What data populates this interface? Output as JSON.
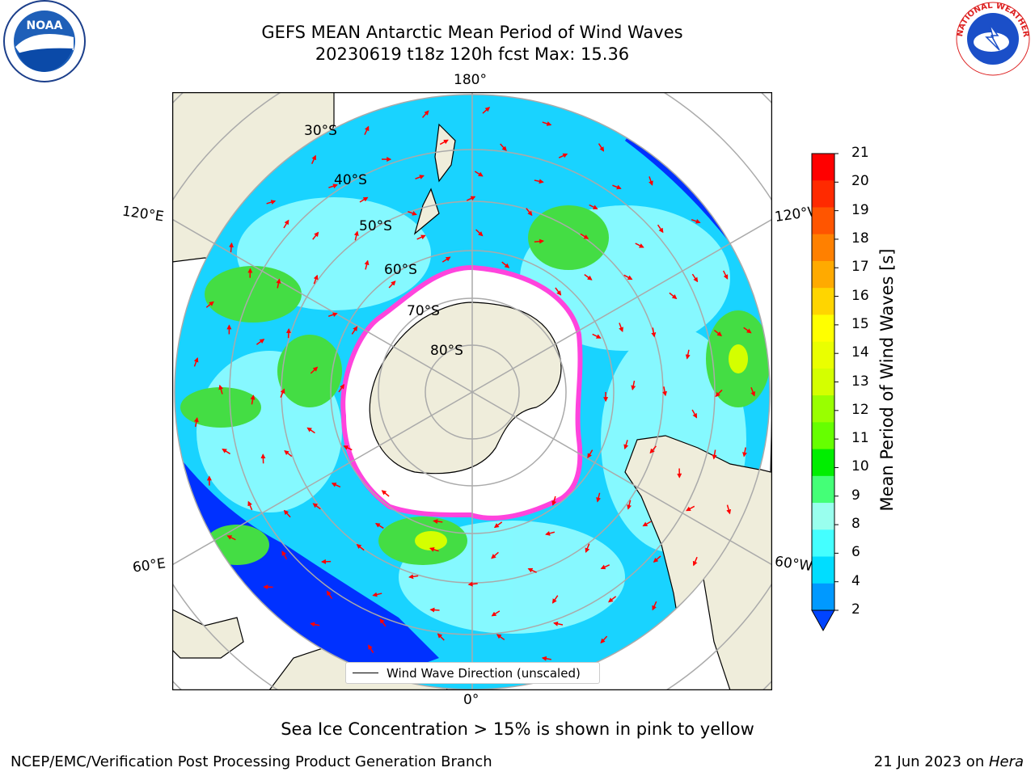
{
  "header": {
    "title_line1": "GEFS MEAN Antarctic Mean Period of Wind Waves",
    "title_line2": "20230619 t18z 120h fcst   Max: 15.36"
  },
  "map": {
    "longitude_labels": {
      "top": "180°",
      "bottom": "0°",
      "left_upper": "120°E",
      "left_lower": "60°E",
      "right_upper": "120°W",
      "right_lower": "60°W"
    },
    "latitude_labels": [
      "30°S",
      "40°S",
      "50°S",
      "60°S",
      "70°S",
      "80°S"
    ],
    "legend_label": "Wind Wave Direction (unscaled)",
    "colors": {
      "land": "#efeddb",
      "ocean_low": "#0031ff",
      "ocean_mid": "#19d3ff",
      "ocean_light": "#99ffff",
      "green": "#44dd44",
      "sea_ice": "#ff44dd",
      "arrow": "#ff0000"
    }
  },
  "colorbar": {
    "label": "Mean Period of Wind Waves [s]",
    "ticks": [
      "21",
      "20",
      "19",
      "18",
      "17",
      "16",
      "15",
      "14",
      "13",
      "12",
      "11",
      "10",
      "9",
      "8",
      "6",
      "4",
      "2"
    ],
    "colors": [
      "#ff0000",
      "#ff2a00",
      "#ff5500",
      "#ff8000",
      "#ffaa00",
      "#ffd500",
      "#ffff00",
      "#eaff00",
      "#d4ff00",
      "#99ff00",
      "#66ff00",
      "#00ee00",
      "#44ff77",
      "#99ffee",
      "#44ffff",
      "#00ddff",
      "#0099ff",
      "#0044ff"
    ]
  },
  "note": "Sea Ice Concentration > 15% is shown in pink to yellow",
  "footer": {
    "left": "NCEP/EMC/Verification Post Processing Product Generation Branch",
    "right_date": "21 Jun 2023 on ",
    "right_machine": "Hera"
  },
  "logos": {
    "noaa_text": "NOAA",
    "nws_text": "NATIONAL WEATHER SERVICE"
  }
}
